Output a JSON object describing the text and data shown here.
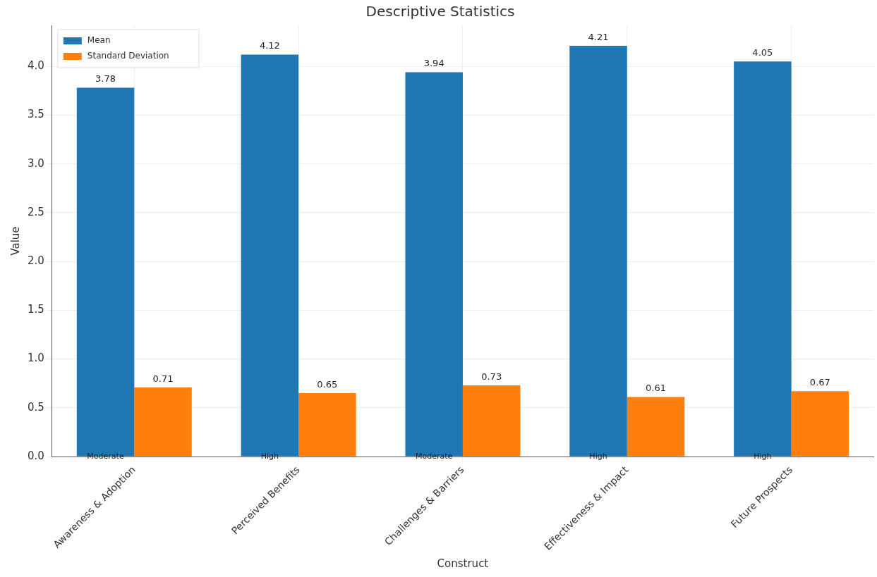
{
  "chart_data": {
    "type": "bar",
    "title": "Descriptive Statistics",
    "xlabel": "Construct",
    "ylabel": "Value",
    "categories": [
      "Awareness & Adoption",
      "Perceived Benefits",
      "Challenges & Barriers",
      "Effectiveness & Impact",
      "Future Prospects"
    ],
    "series": [
      {
        "name": "Mean",
        "color": "#1f77b4",
        "values": [
          3.78,
          4.12,
          3.94,
          4.21,
          4.05
        ]
      },
      {
        "name": "Standard Deviation",
        "color": "#ff7f0e",
        "values": [
          0.71,
          0.65,
          0.73,
          0.61,
          0.67
        ]
      }
    ],
    "ylim": [
      0,
      4.42
    ],
    "yticks": [
      {
        "value": 0,
        "label": "0.0"
      },
      0.5,
      {
        "value": 1,
        "label": "1.0"
      },
      1.5,
      {
        "value": 2,
        "label": "2.0"
      },
      2.5,
      {
        "value": 3,
        "label": "3.0"
      },
      3.5,
      {
        "value": 4,
        "label": "4.0"
      }
    ],
    "grid": true,
    "legend": "top left",
    "data_labels": true,
    "annotations": [
      {
        "text": "Moderate",
        "x": "Awareness & Adoption",
        "y": 0
      },
      {
        "text": "High",
        "x": "Perceived Benefits",
        "y": 0
      },
      {
        "text": "Moderate",
        "x": "Challenges & Barriers",
        "y": 0
      },
      {
        "text": "High",
        "x": "Effectiveness & Impact",
        "y": 0
      },
      {
        "text": "High",
        "x": "Future Prospects",
        "y": 0
      }
    ]
  }
}
